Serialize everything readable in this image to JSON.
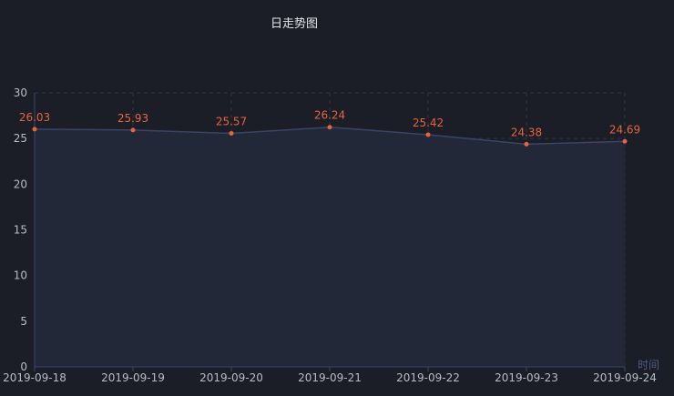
{
  "chart_data": {
    "type": "line",
    "title": "日走势图",
    "xlabel": "时间",
    "ylabel": "",
    "categories": [
      "2019-09-18",
      "2019-09-19",
      "2019-09-20",
      "2019-09-21",
      "2019-09-22",
      "2019-09-23",
      "2019-09-24"
    ],
    "series": [
      {
        "values": [
          26.03,
          25.93,
          25.57,
          26.24,
          25.42,
          24.38,
          24.69
        ]
      }
    ],
    "ylim": [
      0,
      30
    ],
    "yticks": [
      0,
      5,
      10,
      15,
      20,
      25,
      30
    ],
    "grid": true,
    "area_fill": true,
    "show_data_labels": true,
    "colors": {
      "background": "#1b1e27",
      "line": "#3a4566",
      "area": "#232838",
      "point": "#e8643a",
      "label": "#e8643a",
      "grid": "#2f3444",
      "axis": "#3d4670"
    }
  }
}
